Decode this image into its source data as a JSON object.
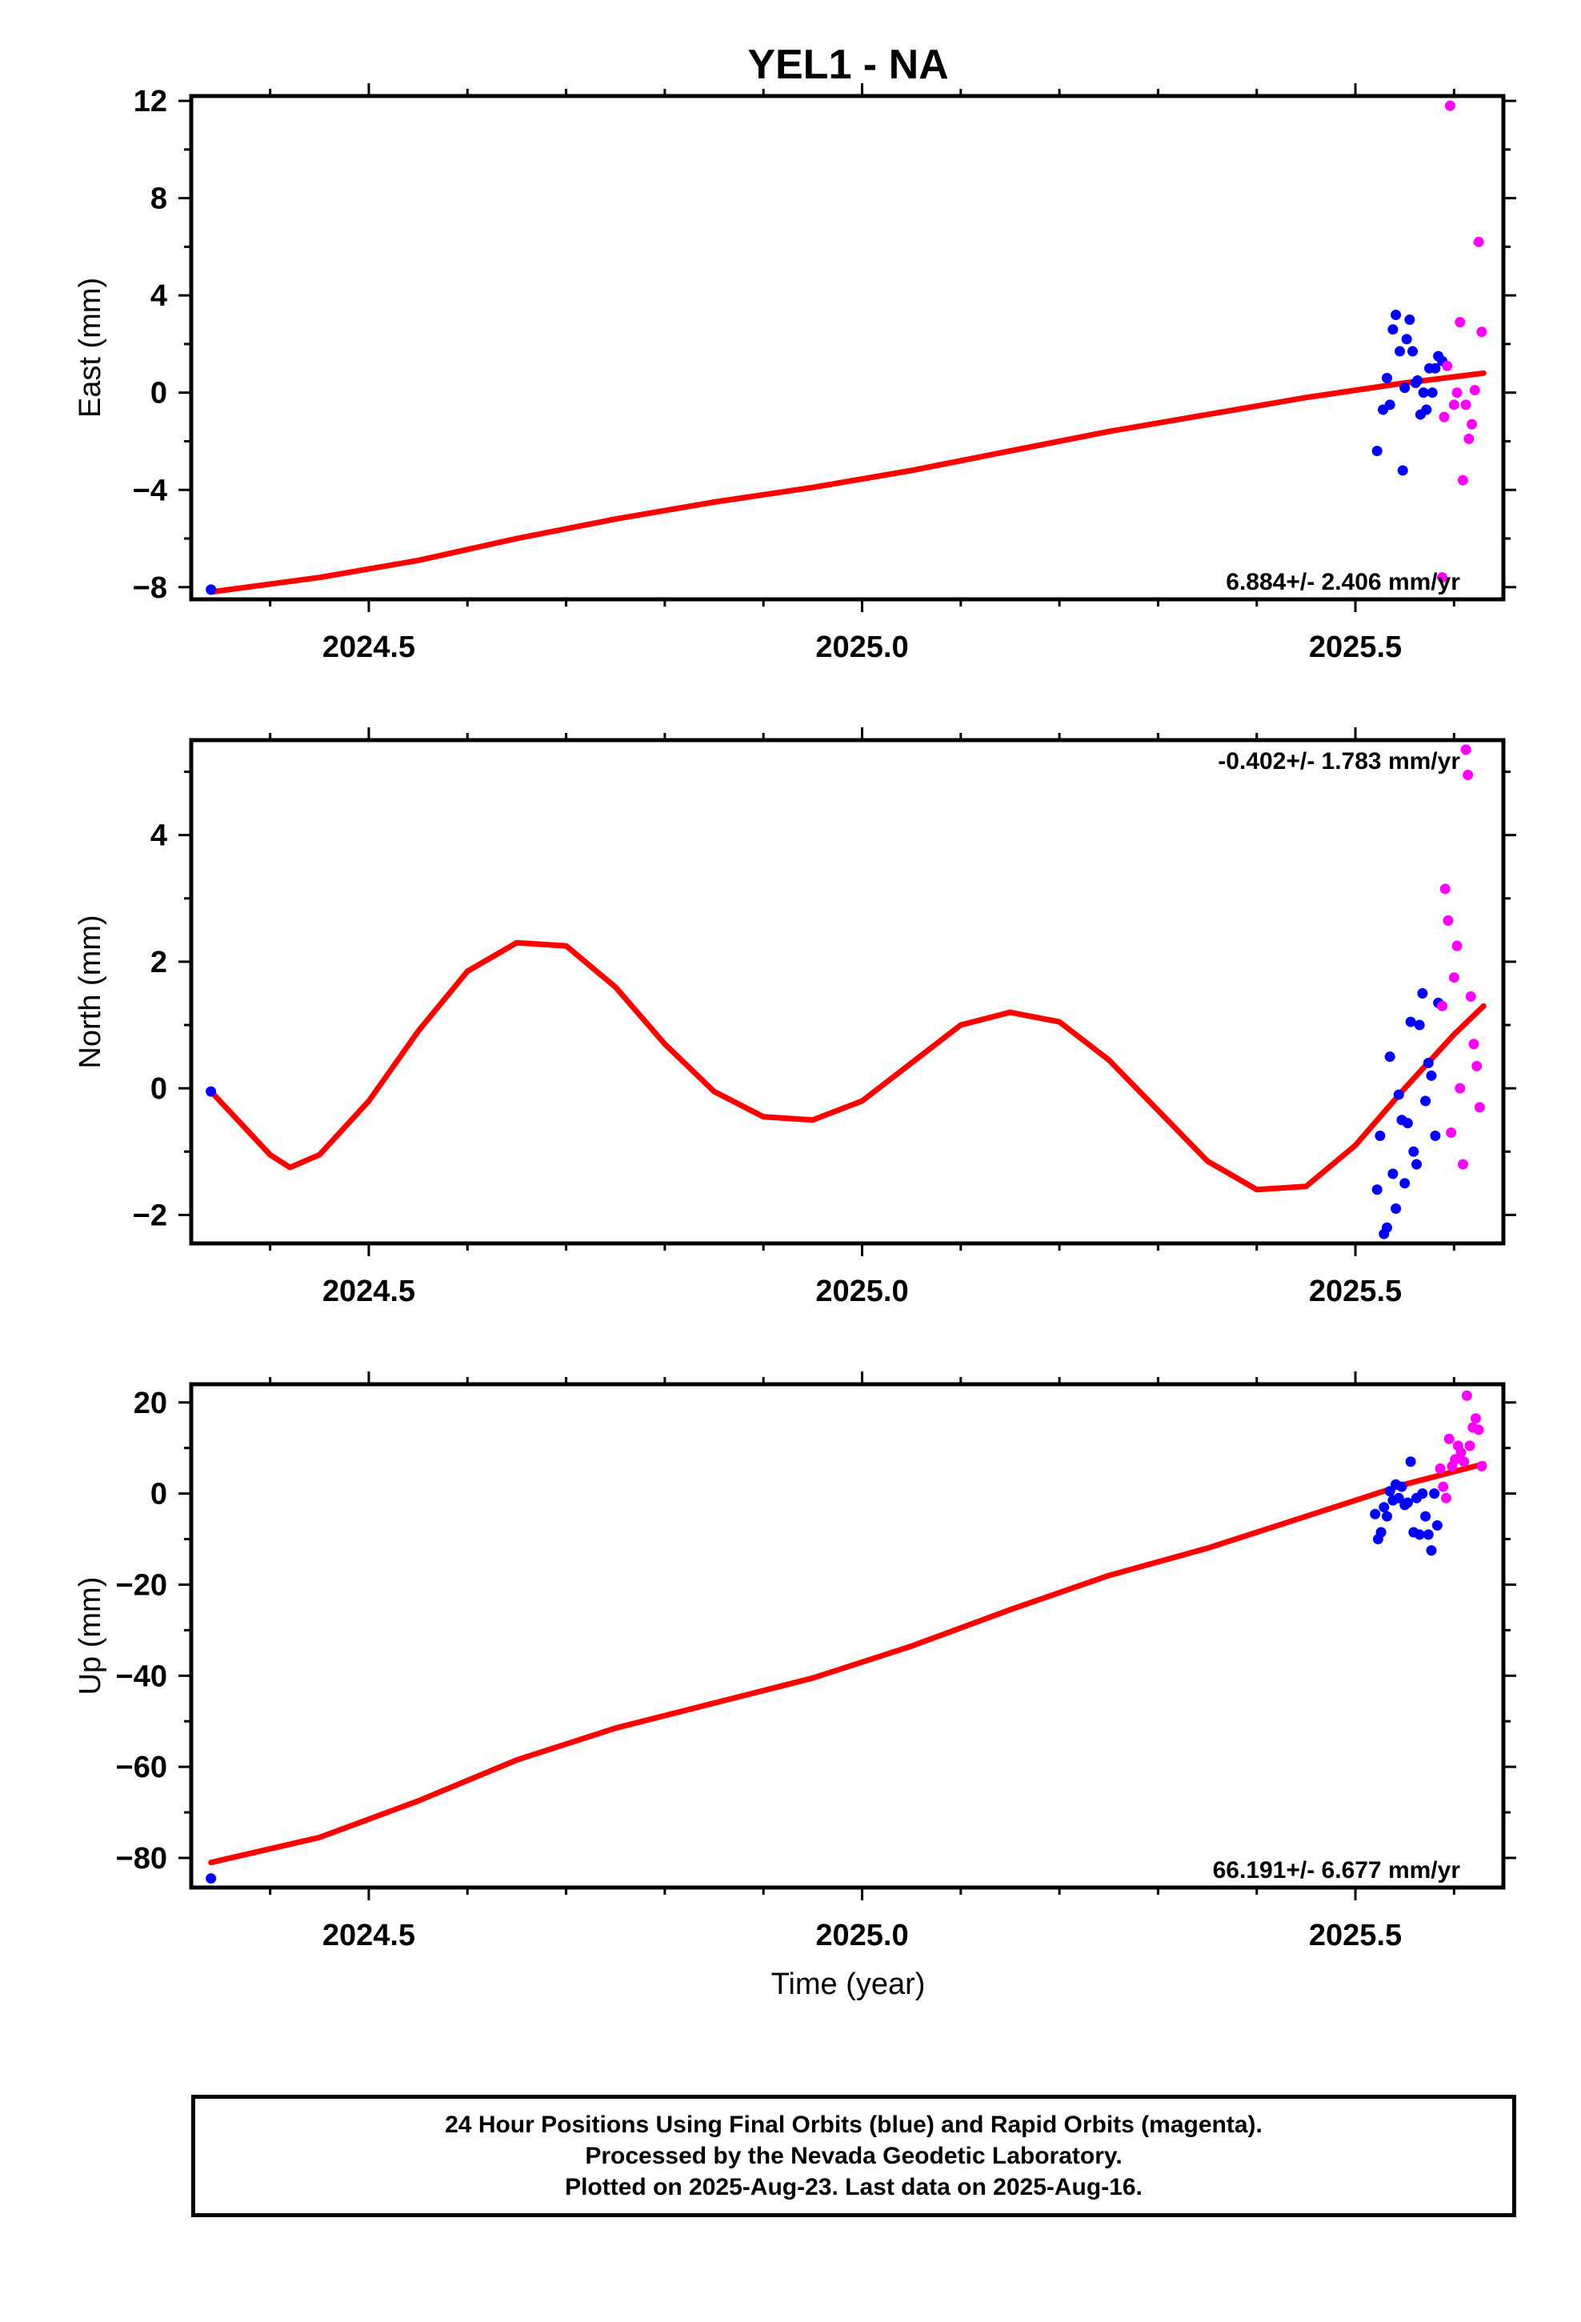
{
  "title": "YEL1 - NA",
  "xlabel": "Time (year)",
  "x_ticks": [
    2024.5,
    2025.0,
    2025.5
  ],
  "x_tick_labels": [
    "2024.5",
    "2025.0",
    "2025.5"
  ],
  "colors": {
    "final_orbits": "#0000ff",
    "rapid_orbits": "#ff00ff",
    "model": "#ff0000",
    "axes": "#000000"
  },
  "caption": {
    "line1": "24 Hour Positions Using Final Orbits (blue) and Rapid Orbits (magenta).",
    "line2": "Processed by the Nevada Geodetic Laboratory.",
    "line3": "Plotted on 2025-Aug-23. Last data on 2025-Aug-16."
  },
  "chart_data": [
    {
      "type": "scatter",
      "ylabel": "East (mm)",
      "xlim": [
        2024.32,
        2025.65
      ],
      "ylim": [
        -8.5,
        12.2
      ],
      "y_ticks": [
        -8,
        -4,
        0,
        4,
        8,
        12
      ],
      "y_tick_labels": [
        "−8",
        "−4",
        "0",
        "4",
        "8",
        "12"
      ],
      "rate_label": "6.884+/- 2.406 mm/yr",
      "rate_position": "bottom-right",
      "series": [
        {
          "points": [
            [
              2024.34,
              -8.1
            ],
            [
              2025.522,
              -2.4
            ],
            [
              2025.528,
              -0.7
            ],
            [
              2025.532,
              0.6
            ],
            [
              2025.535,
              -0.5
            ],
            [
              2025.538,
              2.6
            ],
            [
              2025.541,
              3.2
            ],
            [
              2025.545,
              1.7
            ],
            [
              2025.548,
              -3.2
            ],
            [
              2025.55,
              0.2
            ],
            [
              2025.552,
              2.2
            ],
            [
              2025.555,
              3.0
            ],
            [
              2025.558,
              1.7
            ],
            [
              2025.561,
              0.4
            ],
            [
              2025.563,
              0.5
            ],
            [
              2025.566,
              -0.9
            ],
            [
              2025.569,
              0.0
            ],
            [
              2025.572,
              -0.7
            ],
            [
              2025.575,
              1.0
            ],
            [
              2025.578,
              0.0
            ],
            [
              2025.581,
              1.0
            ],
            [
              2025.584,
              1.5
            ],
            [
              2025.588,
              1.3
            ]
          ]
        },
        {
          "points": [
            [
              2025.59,
              -1.0
            ],
            [
              2025.593,
              1.1
            ],
            [
              2025.596,
              11.8
            ],
            [
              2025.6,
              -0.5
            ],
            [
              2025.603,
              0.0
            ],
            [
              2025.606,
              2.9
            ],
            [
              2025.609,
              -3.6
            ],
            [
              2025.612,
              -0.5
            ],
            [
              2025.615,
              -1.9
            ],
            [
              2025.618,
              -1.3
            ],
            [
              2025.621,
              0.1
            ],
            [
              2025.625,
              6.2
            ],
            [
              2025.628,
              2.5
            ],
            [
              2025.588,
              -7.6
            ]
          ]
        },
        {
          "points": [
            [
              2024.34,
              -8.2
            ],
            [
              2024.45,
              -7.6
            ],
            [
              2024.55,
              -6.9
            ],
            [
              2024.65,
              -6.0
            ],
            [
              2024.75,
              -5.2
            ],
            [
              2024.85,
              -4.5
            ],
            [
              2024.95,
              -3.9
            ],
            [
              2025.05,
              -3.2
            ],
            [
              2025.15,
              -2.4
            ],
            [
              2025.25,
              -1.6
            ],
            [
              2025.35,
              -0.9
            ],
            [
              2025.45,
              -0.2
            ],
            [
              2025.55,
              0.4
            ],
            [
              2025.63,
              0.8
            ]
          ]
        }
      ]
    },
    {
      "type": "scatter",
      "ylabel": "North (mm)",
      "xlim": [
        2024.32,
        2025.65
      ],
      "ylim": [
        -2.45,
        5.5
      ],
      "y_ticks": [
        -2,
        0,
        2,
        4
      ],
      "y_tick_labels": [
        "−2",
        "0",
        "2",
        "4"
      ],
      "rate_label": "-0.402+/- 1.783 mm/yr",
      "rate_position": "top-right",
      "series": [
        {
          "points": [
            [
              2024.34,
              -0.05
            ],
            [
              2025.522,
              -1.6
            ],
            [
              2025.525,
              -0.75
            ],
            [
              2025.529,
              -2.3
            ],
            [
              2025.532,
              -2.2
            ],
            [
              2025.535,
              0.5
            ],
            [
              2025.538,
              -1.35
            ],
            [
              2025.541,
              -1.9
            ],
            [
              2025.544,
              -0.1
            ],
            [
              2025.547,
              -0.5
            ],
            [
              2025.55,
              -1.5
            ],
            [
              2025.553,
              -0.55
            ],
            [
              2025.556,
              1.05
            ],
            [
              2025.559,
              -1.0
            ],
            [
              2025.562,
              -1.2
            ],
            [
              2025.565,
              1.0
            ],
            [
              2025.568,
              1.5
            ],
            [
              2025.571,
              -0.2
            ],
            [
              2025.574,
              0.4
            ],
            [
              2025.577,
              0.2
            ],
            [
              2025.581,
              -0.75
            ],
            [
              2025.584,
              1.35
            ]
          ]
        },
        {
          "points": [
            [
              2025.588,
              1.3
            ],
            [
              2025.591,
              3.15
            ],
            [
              2025.594,
              2.65
            ],
            [
              2025.597,
              -0.7
            ],
            [
              2025.6,
              1.75
            ],
            [
              2025.603,
              2.25
            ],
            [
              2025.606,
              0.0
            ],
            [
              2025.609,
              -1.2
            ],
            [
              2025.612,
              5.35
            ],
            [
              2025.614,
              4.95
            ],
            [
              2025.617,
              1.45
            ],
            [
              2025.62,
              0.7
            ],
            [
              2025.623,
              0.35
            ],
            [
              2025.626,
              -0.3
            ]
          ]
        },
        {
          "points": [
            [
              2024.34,
              -0.05
            ],
            [
              2024.37,
              -0.55
            ],
            [
              2024.4,
              -1.05
            ],
            [
              2024.42,
              -1.25
            ],
            [
              2024.45,
              -1.05
            ],
            [
              2024.5,
              -0.2
            ],
            [
              2024.55,
              0.9
            ],
            [
              2024.6,
              1.85
            ],
            [
              2024.65,
              2.3
            ],
            [
              2024.7,
              2.25
            ],
            [
              2024.75,
              1.6
            ],
            [
              2024.8,
              0.7
            ],
            [
              2024.85,
              -0.05
            ],
            [
              2024.9,
              -0.45
            ],
            [
              2024.95,
              -0.5
            ],
            [
              2025.0,
              -0.2
            ],
            [
              2025.05,
              0.4
            ],
            [
              2025.1,
              1.0
            ],
            [
              2025.15,
              1.2
            ],
            [
              2025.2,
              1.05
            ],
            [
              2025.25,
              0.45
            ],
            [
              2025.3,
              -0.35
            ],
            [
              2025.35,
              -1.15
            ],
            [
              2025.4,
              -1.6
            ],
            [
              2025.45,
              -1.55
            ],
            [
              2025.5,
              -0.9
            ],
            [
              2025.55,
              0.0
            ],
            [
              2025.6,
              0.85
            ],
            [
              2025.63,
              1.3
            ]
          ]
        }
      ]
    },
    {
      "type": "scatter",
      "ylabel": "Up (mm)",
      "xlim": [
        2024.32,
        2025.65
      ],
      "ylim": [
        -86.5,
        24
      ],
      "y_ticks": [
        -80,
        -60,
        -40,
        -20,
        0,
        20
      ],
      "y_tick_labels": [
        "−80",
        "−60",
        "−40",
        "−20",
        "0",
        "20"
      ],
      "rate_label": "66.191+/- 6.677 mm/yr",
      "rate_position": "bottom-right",
      "series": [
        {
          "points": [
            [
              2024.34,
              -84.5
            ],
            [
              2025.52,
              -4.5
            ],
            [
              2025.523,
              -10.0
            ],
            [
              2025.526,
              -8.5
            ],
            [
              2025.529,
              -3.0
            ],
            [
              2025.532,
              -5.0
            ],
            [
              2025.535,
              0.5
            ],
            [
              2025.538,
              -1.5
            ],
            [
              2025.541,
              2.0
            ],
            [
              2025.544,
              -1.0
            ],
            [
              2025.547,
              1.5
            ],
            [
              2025.55,
              -2.5
            ],
            [
              2025.553,
              -2.0
            ],
            [
              2025.556,
              7.0
            ],
            [
              2025.559,
              -8.5
            ],
            [
              2025.562,
              -1.0
            ],
            [
              2025.565,
              -9.0
            ],
            [
              2025.568,
              0.0
            ],
            [
              2025.571,
              -5.0
            ],
            [
              2025.574,
              -9.0
            ],
            [
              2025.577,
              -12.5
            ],
            [
              2025.58,
              0.0
            ],
            [
              2025.583,
              -7.0
            ]
          ]
        },
        {
          "points": [
            [
              2025.586,
              5.5
            ],
            [
              2025.589,
              1.5
            ],
            [
              2025.592,
              -1.0
            ],
            [
              2025.595,
              12.0
            ],
            [
              2025.598,
              6.0
            ],
            [
              2025.601,
              7.5
            ],
            [
              2025.604,
              10.5
            ],
            [
              2025.607,
              9.0
            ],
            [
              2025.61,
              7.0
            ],
            [
              2025.613,
              21.5
            ],
            [
              2025.616,
              10.5
            ],
            [
              2025.619,
              14.5
            ],
            [
              2025.622,
              16.5
            ],
            [
              2025.625,
              14.0
            ],
            [
              2025.628,
              6.0
            ]
          ]
        },
        {
          "points": [
            [
              2024.34,
              -81.0
            ],
            [
              2024.45,
              -75.5
            ],
            [
              2024.55,
              -67.5
            ],
            [
              2024.65,
              -58.5
            ],
            [
              2024.75,
              -51.5
            ],
            [
              2024.85,
              -46.0
            ],
            [
              2024.95,
              -40.5
            ],
            [
              2025.05,
              -33.5
            ],
            [
              2025.15,
              -25.5
            ],
            [
              2025.25,
              -18.0
            ],
            [
              2025.35,
              -12.0
            ],
            [
              2025.45,
              -5.0
            ],
            [
              2025.55,
              2.0
            ],
            [
              2025.63,
              6.5
            ]
          ]
        }
      ]
    }
  ]
}
